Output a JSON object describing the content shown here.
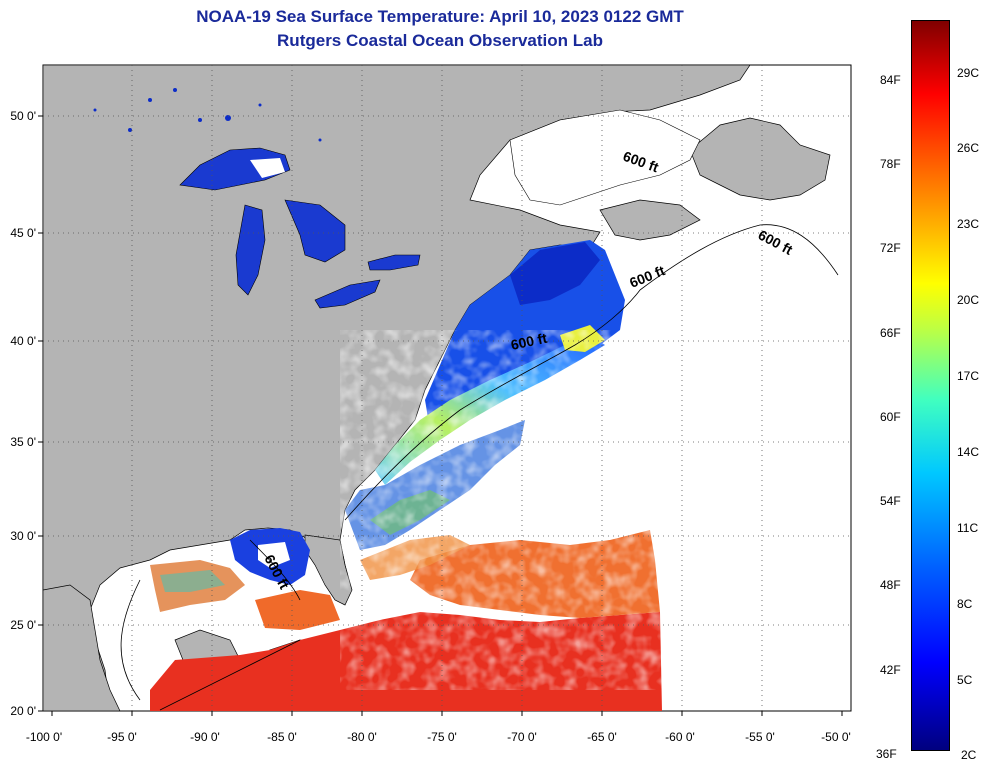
{
  "title": {
    "line1": "NOAA-19 Sea Surface Temperature:  April 10, 2023 0122 GMT",
    "line2": "Rutgers Coastal Ocean Observation Lab"
  },
  "axes": {
    "x_ticks": [
      "-100 0'",
      "-95 0'",
      "-90 0'",
      "-85 0'",
      "-80 0'",
      "-75 0'",
      "-70 0'",
      "-65 0'",
      "-60 0'",
      "-55 0'",
      "-50 0'"
    ],
    "y_ticks": [
      "50 0'",
      "45 0'",
      "40 0'",
      "35 0'",
      "30 0'",
      "25 0'",
      "20 0'"
    ]
  },
  "contour_labels": [
    "600 ft",
    "600 ft",
    "600 ft",
    "600 ft",
    "600 ft"
  ],
  "colorbar": {
    "fahrenheit": [
      "84F",
      "78F",
      "72F",
      "66F",
      "60F",
      "54F",
      "48F",
      "42F",
      "36F"
    ],
    "celsius": [
      "29C",
      "26C",
      "23C",
      "20C",
      "17C",
      "14C",
      "11C",
      "8C",
      "5C",
      "2C"
    ]
  },
  "colors": {
    "land": "#b4b4b4",
    "no_data": "#ffffff",
    "title": "#1a2a9a"
  }
}
